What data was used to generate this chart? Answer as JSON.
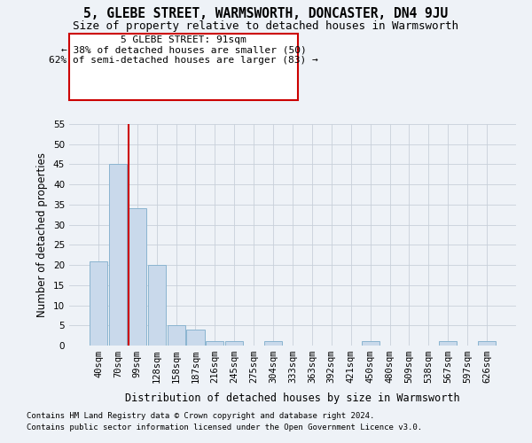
{
  "title1": "5, GLEBE STREET, WARMSWORTH, DONCASTER, DN4 9JU",
  "title2": "Size of property relative to detached houses in Warmsworth",
  "xlabel": "Distribution of detached houses by size in Warmsworth",
  "ylabel": "Number of detached properties",
  "categories": [
    "40sqm",
    "70sqm",
    "99sqm",
    "128sqm",
    "158sqm",
    "187sqm",
    "216sqm",
    "245sqm",
    "275sqm",
    "304sqm",
    "333sqm",
    "363sqm",
    "392sqm",
    "421sqm",
    "450sqm",
    "480sqm",
    "509sqm",
    "538sqm",
    "567sqm",
    "597sqm",
    "626sqm"
  ],
  "values": [
    21,
    45,
    34,
    20,
    5,
    4,
    1,
    1,
    0,
    1,
    0,
    0,
    0,
    0,
    1,
    0,
    0,
    0,
    1,
    0,
    1
  ],
  "bar_color": "#c9d9eb",
  "bar_edge_color": "#8ab4d0",
  "grid_color": "#c8d0da",
  "background_color": "#eef2f7",
  "vline_color": "#cc0000",
  "vline_x": 1.55,
  "annotation_text": "5 GLEBE STREET: 91sqm\n← 38% of detached houses are smaller (50)\n62% of semi-detached houses are larger (83) →",
  "annotation_box_color": "#ffffff",
  "annotation_box_edge": "#cc0000",
  "ylim": [
    0,
    55
  ],
  "yticks": [
    0,
    5,
    10,
    15,
    20,
    25,
    30,
    35,
    40,
    45,
    50,
    55
  ],
  "footer1": "Contains HM Land Registry data © Crown copyright and database right 2024.",
  "footer2": "Contains public sector information licensed under the Open Government Licence v3.0.",
  "title1_fontsize": 10.5,
  "title2_fontsize": 9,
  "xlabel_fontsize": 8.5,
  "ylabel_fontsize": 8.5,
  "tick_fontsize": 7.5,
  "annotation_fontsize": 8,
  "footer_fontsize": 6.5
}
